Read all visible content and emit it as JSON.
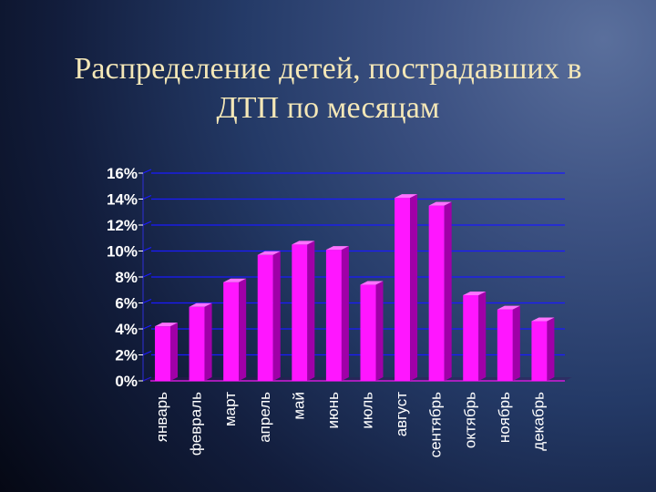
{
  "title": {
    "line1": "Распределение детей, пострадавших в",
    "line2": "ДТП по месяцам"
  },
  "colors": {
    "background": "#0b1022",
    "title_text": "#f4e7b7",
    "axis_text": "#ffffff",
    "grid": "#1a1aff",
    "bar_front": "#ff16ff",
    "bar_side": "#a000a8",
    "bar_top": "#ff72ff",
    "floor": "#d11bd9"
  },
  "chart_data": {
    "type": "bar",
    "categories": [
      "январь",
      "февраль",
      "март",
      "апрель",
      "май",
      "июнь",
      "июль",
      "август",
      "сентябрь",
      "октябрь",
      "ноябрь",
      "декабрь"
    ],
    "values": [
      4.2,
      5.7,
      7.6,
      9.7,
      10.5,
      10.1,
      7.4,
      14.1,
      13.5,
      6.6,
      5.5,
      4.6
    ],
    "value_unit": "%",
    "ylim": [
      0,
      16
    ],
    "yticks": [
      "0%",
      "2%",
      "4%",
      "6%",
      "8%",
      "10%",
      "12%",
      "14%",
      "16%"
    ],
    "grid": true,
    "xlabel": "",
    "ylabel": "",
    "style": "3d-bars"
  }
}
